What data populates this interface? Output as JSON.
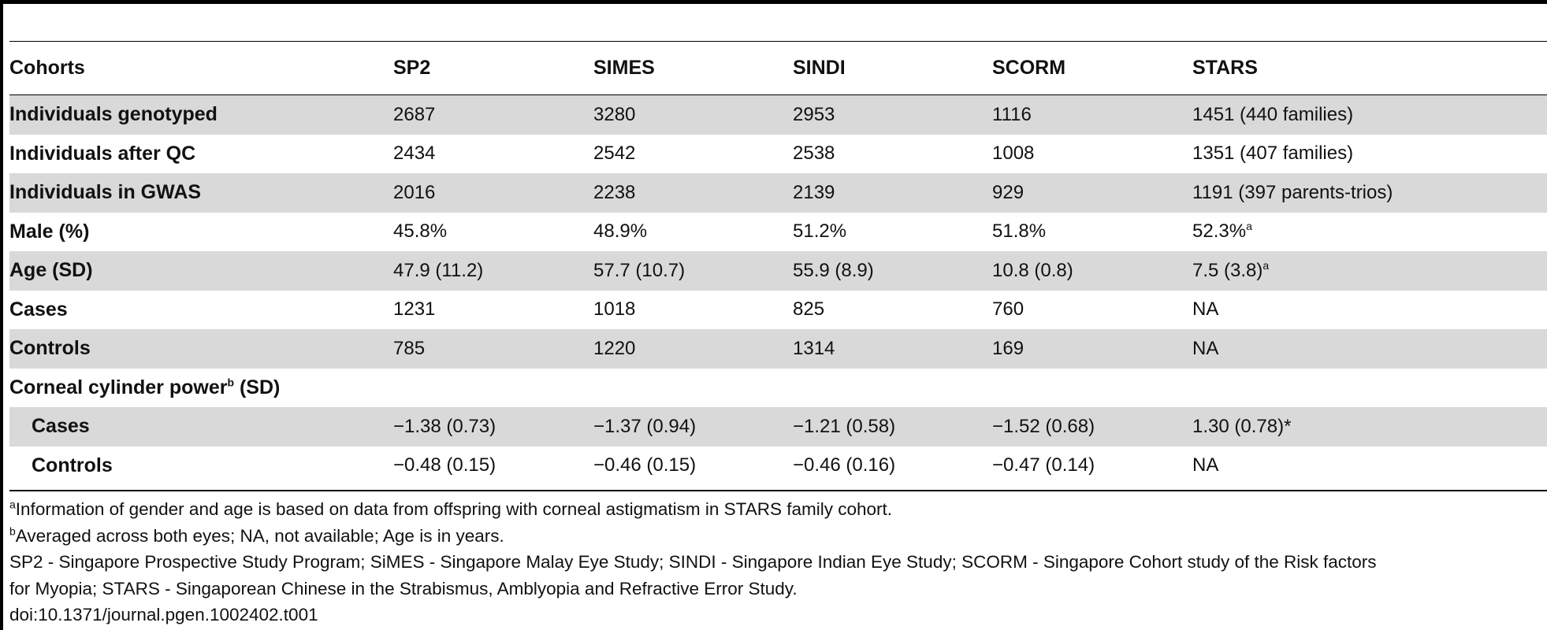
{
  "header": {
    "label": "Cohorts",
    "cols": [
      "SP2",
      "SIMES",
      "SINDI",
      "SCORM",
      "STARS"
    ]
  },
  "rows": [
    {
      "label": "Individuals genotyped",
      "cells": [
        "2687",
        "3280",
        "2953",
        "1116",
        "1451 (440 families)"
      ]
    },
    {
      "label": "Individuals after QC",
      "cells": [
        "2434",
        "2542",
        "2538",
        "1008",
        "1351 (407 families)"
      ]
    },
    {
      "label": "Individuals in GWAS",
      "cells": [
        "2016",
        "2238",
        "2139",
        "929",
        "1191 (397 parents-trios)"
      ]
    },
    {
      "label": "Male (%)",
      "cells": [
        "45.8%",
        "48.9%",
        "51.2%",
        "51.8%",
        "52.3%"
      ],
      "last_sup": "a"
    },
    {
      "label": "Age (SD)",
      "cells": [
        "47.9 (11.2)",
        "57.7 (10.7)",
        "55.9 (8.9)",
        "10.8 (0.8)",
        "7.5 (3.8)"
      ],
      "last_sup": "a"
    },
    {
      "label": "Cases",
      "cells": [
        "1231",
        "1018",
        "825",
        "760",
        "NA"
      ]
    },
    {
      "label": "Controls",
      "cells": [
        "785",
        "1220",
        "1314",
        "169",
        "NA"
      ]
    }
  ],
  "section": {
    "label_pre": "Corneal cylinder power",
    "label_sup": "b",
    "label_post": " (SD)"
  },
  "subrows": [
    {
      "label": "Cases",
      "cells": [
        "−1.38 (0.73)",
        "−1.37 (0.94)",
        "−1.21 (0.58)",
        "−1.52 (0.68)",
        "1.30 (0.78)*"
      ]
    },
    {
      "label": "Controls",
      "cells": [
        "−0.48 (0.15)",
        "−0.46 (0.15)",
        "−0.46 (0.16)",
        "−0.47 (0.14)",
        "NA"
      ]
    }
  ],
  "notes": {
    "a_sup": "a",
    "a_text": "Information of gender and age is based on data from offspring with corneal astigmatism in STARS family cohort.",
    "b_sup": "b",
    "b_text": "Averaged across both eyes; NA, not available; Age is in years.",
    "abbr_line1": "SP2 - Singapore Prospective Study Program; SiMES - Singapore Malay Eye Study; SINDI - Singapore Indian Eye Study; SCORM - Singapore Cohort study of the Risk factors",
    "abbr_line2": "for Myopia; STARS - Singaporean Chinese in the Strabismus, Amblyopia and Refractive Error Study.",
    "doi": "doi:10.1371/journal.pgen.1002402.t001"
  }
}
